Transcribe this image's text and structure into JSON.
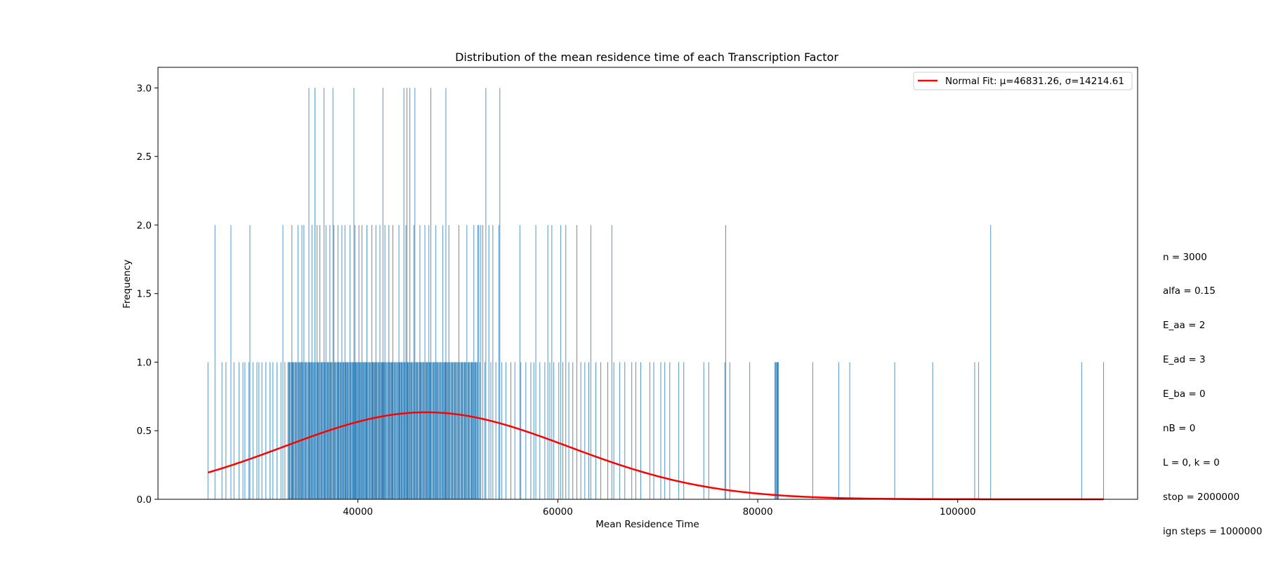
{
  "chart_data": {
    "type": "bar",
    "title": "Distribution of the mean residence time of each Transcription Factor",
    "xlabel": "Mean Residence Time",
    "ylabel": "Frequency",
    "xlim": [
      20000,
      118000
    ],
    "ylim": [
      0,
      3.15
    ],
    "xticks": [
      40000,
      60000,
      80000,
      100000
    ],
    "yticks": [
      0.0,
      0.5,
      1.0,
      1.5,
      2.0,
      2.5,
      3.0
    ],
    "ytick_labels": [
      "0.0",
      "0.5",
      "1.0",
      "1.5",
      "2.0",
      "2.5",
      "3.0"
    ],
    "grid": false,
    "bar_color": "#1f77b4",
    "bars": {
      "x_freq3": [
        35100,
        35700,
        36600,
        37500,
        39600,
        42500,
        44600,
        44900,
        45200,
        45700,
        47300,
        48800,
        52800,
        54200
      ],
      "x_freq2": [
        25700,
        27300,
        29200,
        32500,
        33400,
        34000,
        34400,
        34600,
        35400,
        35900,
        36200,
        36800,
        37200,
        37600,
        38000,
        38400,
        38700,
        39200,
        39700,
        40100,
        40400,
        40900,
        41400,
        41800,
        42200,
        42700,
        43100,
        43500,
        44100,
        44800,
        45600,
        46200,
        46700,
        47100,
        47800,
        48500,
        49100,
        50100,
        50900,
        51600,
        52000,
        52100,
        52300,
        52500,
        53100,
        53500,
        54100,
        56200,
        57800,
        59000,
        59400,
        60300,
        60800,
        61900,
        63300,
        65400,
        76800,
        103300
      ],
      "x_freq1": [
        25000,
        26400,
        26800,
        27600,
        28100,
        28500,
        28700,
        29100,
        29500,
        29900,
        30100,
        30400,
        30800,
        31200,
        31500,
        31900,
        32300,
        32700,
        33100,
        33500,
        33800,
        34200,
        34800,
        35200,
        35600,
        36000,
        36400,
        36700,
        37000,
        37300,
        37700,
        38100,
        38300,
        38500,
        38800,
        39000,
        39300,
        39500,
        39800,
        40000,
        40200,
        40300,
        40600,
        40800,
        41000,
        41200,
        41500,
        41700,
        41900,
        42100,
        42400,
        42600,
        42900,
        43200,
        43400,
        43700,
        43900,
        44200,
        44400,
        44700,
        45000,
        45400,
        45900,
        46300,
        46500,
        46900,
        47200,
        47600,
        48000,
        48300,
        48700,
        49000,
        49400,
        49700,
        50000,
        50400,
        50700,
        51100,
        51400,
        51800,
        52200,
        52700,
        53300,
        53800,
        54400,
        54800,
        55300,
        55700,
        56300,
        56800,
        57300,
        57600,
        58200,
        58700,
        59200,
        59600,
        60100,
        60500,
        61100,
        61500,
        62300,
        62700,
        63100,
        63800,
        64300,
        65000,
        65600,
        66200,
        66700,
        67400,
        67800,
        68300,
        69200,
        69600,
        70300,
        70700,
        71200,
        72100,
        72600,
        74600,
        75100,
        76700,
        77200,
        79200,
        81900,
        82000,
        85500,
        88100,
        89200,
        93700,
        97500,
        101700,
        102100,
        112400,
        114600
      ],
      "dense_ranges": [
        [
          33000,
          52000
        ],
        [
          81700,
          82100
        ]
      ]
    },
    "fit": {
      "label": "Normal Fit: μ=46831.26, σ=14214.61",
      "mu": 46831.26,
      "sigma": 14214.61,
      "scale": 22600,
      "x_range": [
        25000,
        114600
      ],
      "color": "#ff0000"
    },
    "legend": "top-right"
  },
  "parameters": [
    "n = 3000",
    "alfa = 0.15",
    "E_aa = 2",
    "E_ad = 3",
    "E_ba = 0",
    "nB = 0",
    "L = 0, k = 0",
    "stop = 2000000",
    "ign steps = 1000000"
  ]
}
